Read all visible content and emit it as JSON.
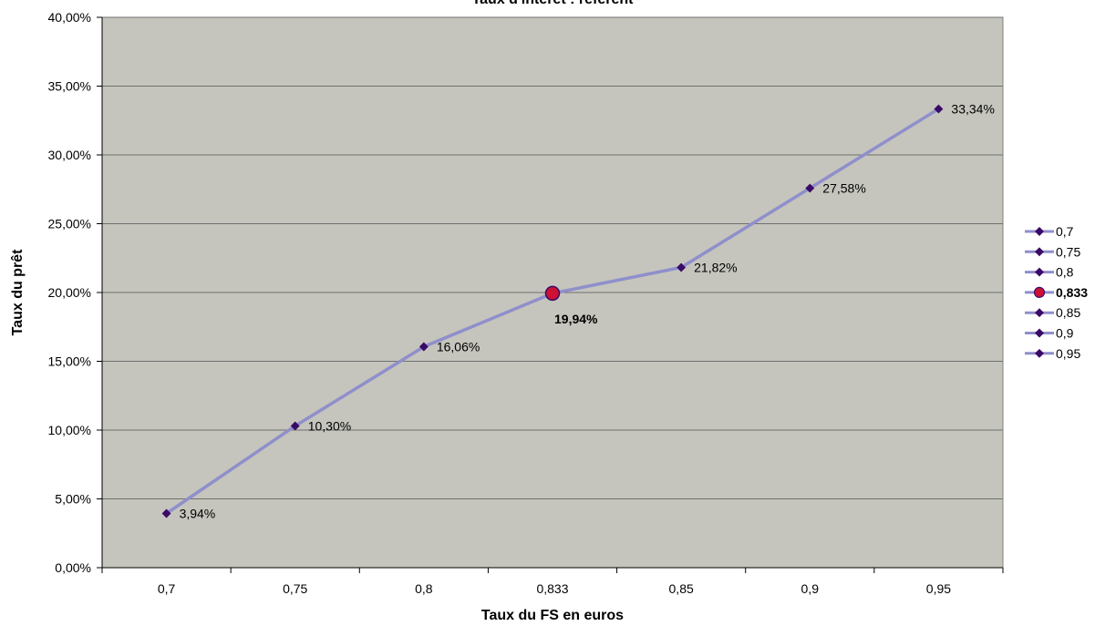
{
  "chart_data": {
    "type": "line",
    "title": "Taux d'intérêt : référent",
    "xlabel": "Taux du FS en euros",
    "ylabel": "Taux du prêt",
    "categories": [
      "0,7",
      "0,75",
      "0,8",
      "0,833",
      "0,85",
      "0,9",
      "0,95"
    ],
    "values": [
      3.94,
      10.3,
      16.06,
      19.94,
      21.82,
      27.58,
      33.34
    ],
    "data_labels": [
      "3,94%",
      "10,30%",
      "16,06%",
      "19,94%",
      "21,82%",
      "27,58%",
      "33,34%"
    ],
    "highlight_index": 3,
    "ylim": [
      0,
      40
    ],
    "yticks": [
      0,
      5,
      10,
      15,
      20,
      25,
      30,
      35,
      40
    ],
    "ytick_labels": [
      "0,00%",
      "5,00%",
      "10,00%",
      "15,00%",
      "20,00%",
      "25,00%",
      "30,00%",
      "35,00%",
      "40,00%"
    ],
    "grid": true,
    "legend": {
      "placement": "right",
      "entries": [
        "0,7",
        "0,75",
        "0,8",
        "0,833",
        "0,85",
        "0,9",
        "0,95"
      ]
    },
    "colors": {
      "plot_background": "#c5c5bd",
      "line": "#8f8fcc",
      "marker": "#3a0a66",
      "highlight_fill": "#cc1133",
      "highlight_stroke": "#3a0a66",
      "gridline": "#707070",
      "text": "#000000"
    }
  }
}
